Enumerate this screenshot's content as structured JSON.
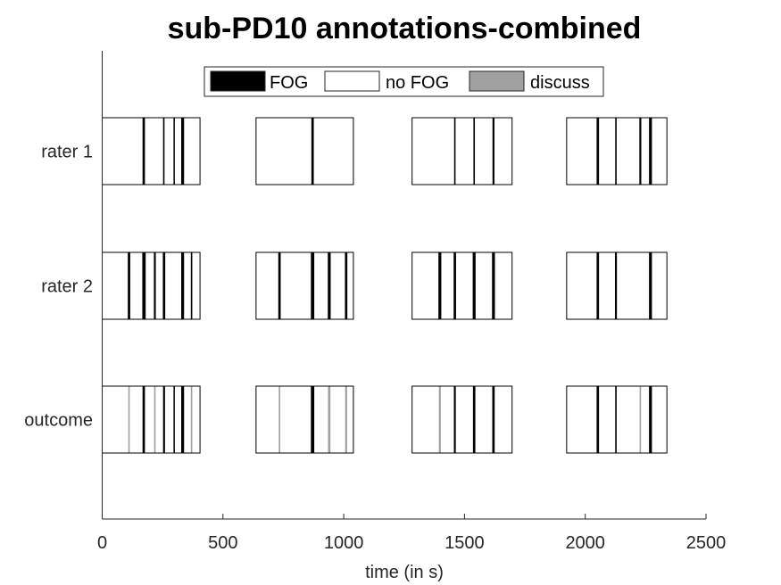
{
  "chart_data": {
    "type": "timeline",
    "title": "sub-PD10 annotations-combined",
    "xlabel": "time (in s)",
    "ylabel": "",
    "xlim": [
      0,
      2500
    ],
    "xticks": [
      0,
      500,
      1000,
      1500,
      2000,
      2500
    ],
    "xtick_labels": [
      "0",
      "500",
      "1000",
      "1500",
      "2000",
      "2500"
    ],
    "grid": false,
    "legend": {
      "placement": "top-center",
      "entries": [
        {
          "label": "FOG",
          "color": "#000000"
        },
        {
          "label": "no FOG",
          "color": "#ffffff"
        },
        {
          "label": "discuss",
          "color": "#a0a0a0"
        }
      ]
    },
    "segments": [
      [
        0,
        405
      ],
      [
        637,
        1040
      ],
      [
        1283,
        1697
      ],
      [
        1923,
        2338
      ]
    ],
    "rows": [
      {
        "label": "rater 1",
        "events": [
          {
            "t": 172,
            "w": 10,
            "type": "FOG"
          },
          {
            "t": 255,
            "w": 6,
            "type": "FOG"
          },
          {
            "t": 298,
            "w": 4,
            "type": "FOG"
          },
          {
            "t": 333,
            "w": 12,
            "type": "FOG"
          },
          {
            "t": 871,
            "w": 10,
            "type": "FOG"
          },
          {
            "t": 1460,
            "w": 6,
            "type": "FOG"
          },
          {
            "t": 1540,
            "w": 6,
            "type": "FOG"
          },
          {
            "t": 1620,
            "w": 8,
            "type": "FOG"
          },
          {
            "t": 2052,
            "w": 10,
            "type": "FOG"
          },
          {
            "t": 2127,
            "w": 6,
            "type": "FOG"
          },
          {
            "t": 2228,
            "w": 8,
            "type": "FOG"
          },
          {
            "t": 2270,
            "w": 12,
            "type": "FOG"
          }
        ]
      },
      {
        "label": "rater 2",
        "events": [
          {
            "t": 111,
            "w": 10,
            "type": "FOG"
          },
          {
            "t": 173,
            "w": 14,
            "type": "FOG"
          },
          {
            "t": 218,
            "w": 8,
            "type": "FOG"
          },
          {
            "t": 256,
            "w": 10,
            "type": "FOG"
          },
          {
            "t": 333,
            "w": 12,
            "type": "FOG"
          },
          {
            "t": 370,
            "w": 6,
            "type": "FOG"
          },
          {
            "t": 734,
            "w": 10,
            "type": "FOG"
          },
          {
            "t": 871,
            "w": 14,
            "type": "FOG"
          },
          {
            "t": 940,
            "w": 12,
            "type": "FOG"
          },
          {
            "t": 1010,
            "w": 10,
            "type": "FOG"
          },
          {
            "t": 1398,
            "w": 12,
            "type": "FOG"
          },
          {
            "t": 1460,
            "w": 10,
            "type": "FOG"
          },
          {
            "t": 1540,
            "w": 12,
            "type": "FOG"
          },
          {
            "t": 1620,
            "w": 12,
            "type": "FOG"
          },
          {
            "t": 2052,
            "w": 10,
            "type": "FOG"
          },
          {
            "t": 2127,
            "w": 8,
            "type": "FOG"
          },
          {
            "t": 2270,
            "w": 12,
            "type": "FOG"
          }
        ]
      },
      {
        "label": "outcome",
        "events": [
          {
            "t": 111,
            "w": 6,
            "type": "discuss"
          },
          {
            "t": 172,
            "w": 10,
            "type": "FOG"
          },
          {
            "t": 218,
            "w": 6,
            "type": "discuss"
          },
          {
            "t": 256,
            "w": 8,
            "type": "FOG"
          },
          {
            "t": 298,
            "w": 4,
            "type": "FOG"
          },
          {
            "t": 333,
            "w": 12,
            "type": "FOG"
          },
          {
            "t": 370,
            "w": 6,
            "type": "discuss"
          },
          {
            "t": 734,
            "w": 6,
            "type": "discuss"
          },
          {
            "t": 871,
            "w": 14,
            "type": "FOG"
          },
          {
            "t": 940,
            "w": 10,
            "type": "discuss"
          },
          {
            "t": 1010,
            "w": 8,
            "type": "discuss"
          },
          {
            "t": 1398,
            "w": 8,
            "type": "discuss"
          },
          {
            "t": 1460,
            "w": 8,
            "type": "FOG"
          },
          {
            "t": 1540,
            "w": 10,
            "type": "FOG"
          },
          {
            "t": 1620,
            "w": 10,
            "type": "FOG"
          },
          {
            "t": 2052,
            "w": 10,
            "type": "FOG"
          },
          {
            "t": 2127,
            "w": 6,
            "type": "FOG"
          },
          {
            "t": 2228,
            "w": 6,
            "type": "discuss"
          },
          {
            "t": 2270,
            "w": 12,
            "type": "FOG"
          }
        ]
      }
    ]
  }
}
